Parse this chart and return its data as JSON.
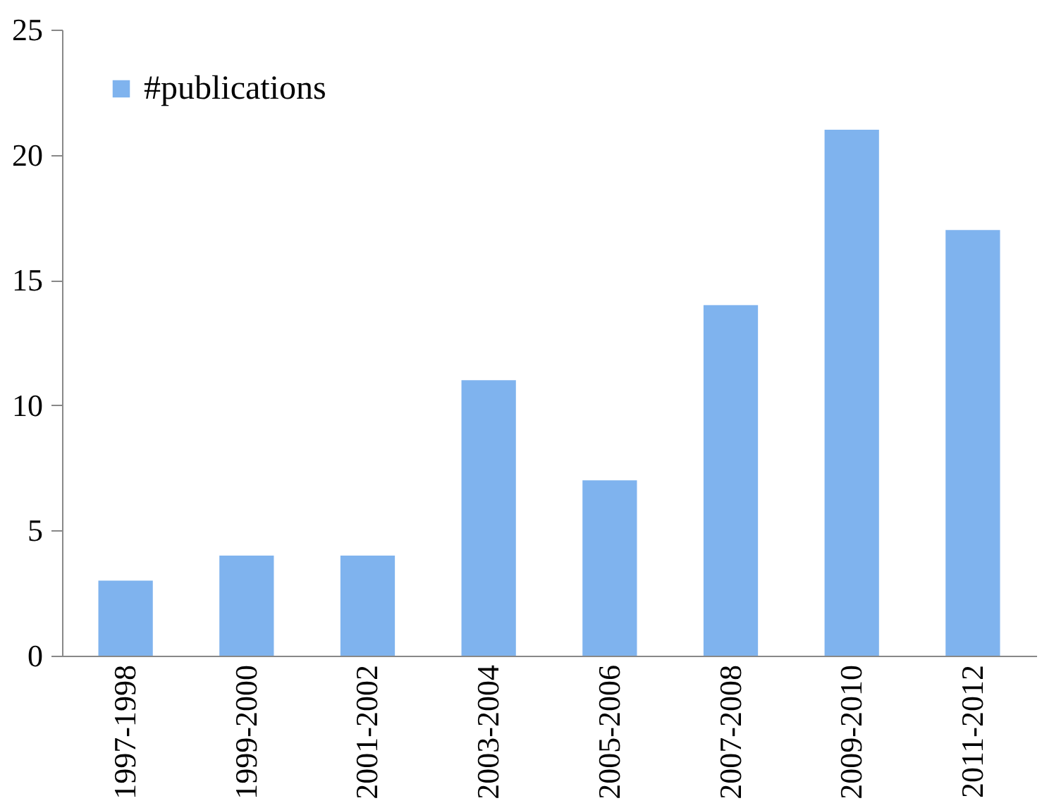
{
  "chart_data": {
    "type": "bar",
    "categories": [
      "1997-1998",
      "1999-2000",
      "2001-2002",
      "2003-2004",
      "2005-2006",
      "2007-2008",
      "2009-2010",
      "2011-2012"
    ],
    "series": [
      {
        "name": "#publications",
        "color": "#7fb3ee",
        "values": [
          3,
          4,
          4,
          11,
          7,
          14,
          21,
          17
        ]
      }
    ],
    "ylim": [
      0,
      25
    ],
    "yticks": [
      0,
      5,
      10,
      15,
      20,
      25
    ],
    "grid": false,
    "legend": "top left"
  }
}
